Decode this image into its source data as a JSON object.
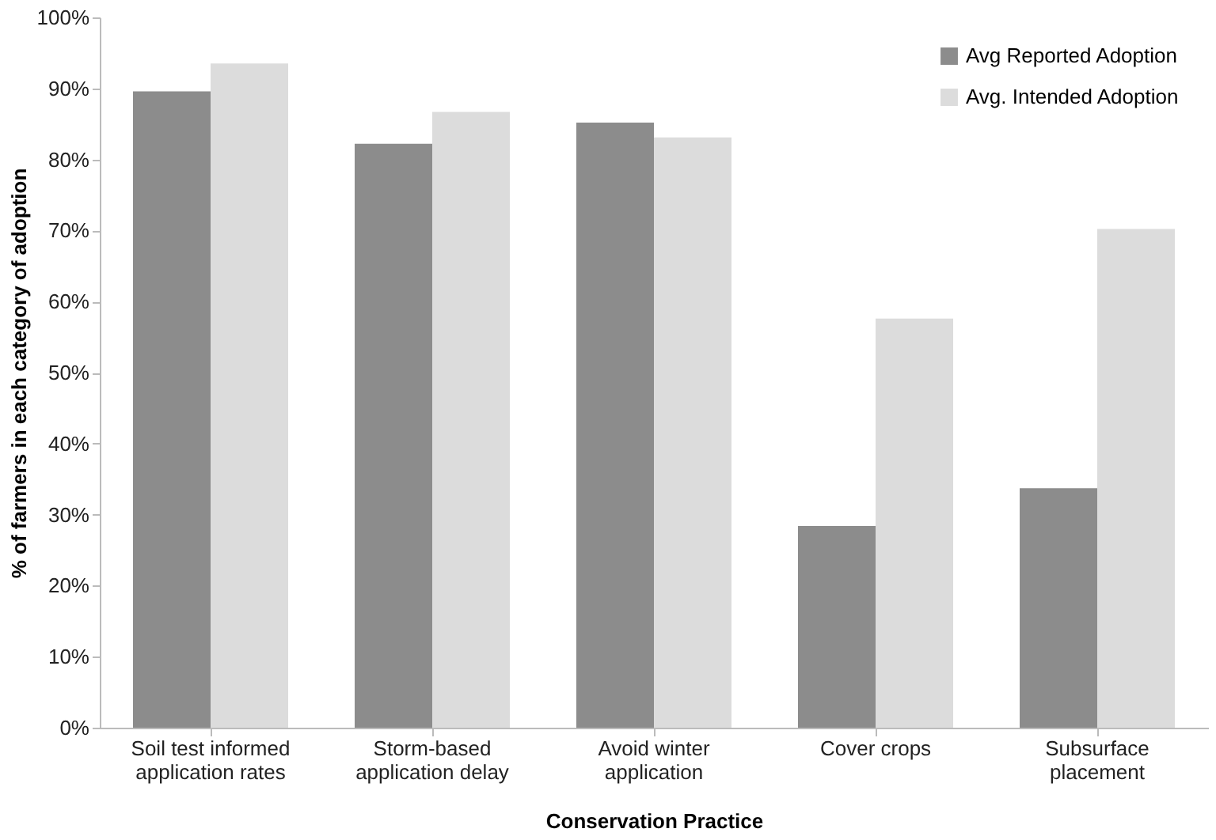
{
  "chart_data": {
    "type": "bar",
    "xlabel": "Conservation Practice",
    "ylabel": "% of farmers in each category of adoption",
    "categories": [
      "Soil test informed application rates",
      "Storm-based application delay",
      "Avoid winter application",
      "Cover crops",
      "Subsurface placement"
    ],
    "series": [
      {
        "name": "Avg Reported Adoption",
        "color": "#8c8c8c",
        "values": [
          89.6,
          82.2,
          85.2,
          28.4,
          33.7
        ]
      },
      {
        "name": "Avg. Intended Adoption",
        "color": "#dcdcdc",
        "values": [
          93.5,
          86.7,
          83.1,
          57.6,
          70.2
        ]
      }
    ],
    "ylim": [
      0,
      100
    ],
    "yticks": [
      {
        "value": 0,
        "label": "0%"
      },
      {
        "value": 10,
        "label": "10%"
      },
      {
        "value": 20,
        "label": "20%"
      },
      {
        "value": 30,
        "label": "30%"
      },
      {
        "value": 40,
        "label": "40%"
      },
      {
        "value": 50,
        "label": "50%"
      },
      {
        "value": 60,
        "label": "60%"
      },
      {
        "value": 70,
        "label": "70%"
      },
      {
        "value": 80,
        "label": "80%"
      },
      {
        "value": 90,
        "label": "90%"
      },
      {
        "value": 100,
        "label": "100%"
      }
    ],
    "grid": false,
    "legend": "top right"
  }
}
